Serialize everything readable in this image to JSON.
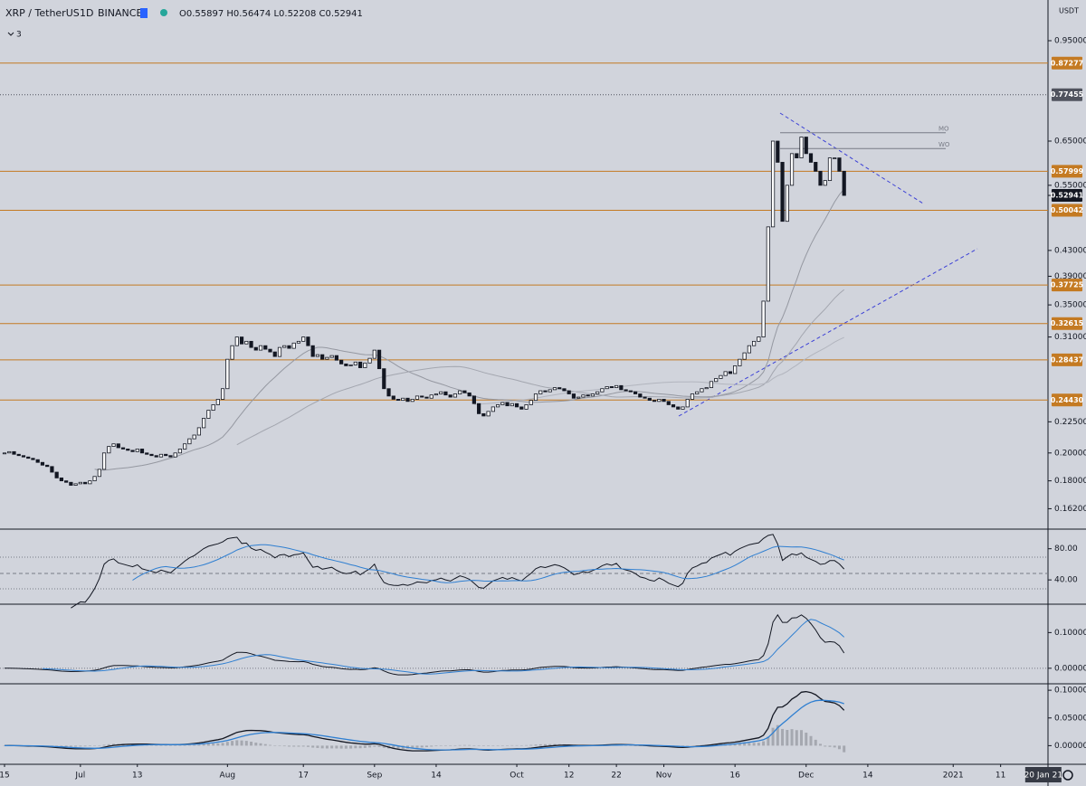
{
  "chart_data": {
    "type": "candlestick",
    "symbol": "XRP / TetherUS",
    "interval": "1D",
    "exchange": "BINANCE",
    "ohlc": "O0.55897 H0.56474 L0.52208 C0.52941",
    "indicator_count": "3",
    "currency": "USDT",
    "log_scale": true,
    "up_color": "#ffffff",
    "down_color": "#131722",
    "level_color": "#c47a22",
    "ylim": [
      0.151,
      1.108
    ],
    "yticks": [
      {
        "value": 0.95,
        "label": "0.95000"
      },
      {
        "value": 0.65,
        "label": "0.65000"
      },
      {
        "value": 0.55,
        "label": "0.55000"
      },
      {
        "value": 0.43,
        "label": "0.43000"
      },
      {
        "value": 0.39,
        "label": "0.39000"
      },
      {
        "value": 0.35,
        "label": "0.35000"
      },
      {
        "value": 0.31,
        "label": "0.31000"
      },
      {
        "value": 0.225,
        "label": "0.22500"
      },
      {
        "value": 0.2,
        "label": "0.20000"
      },
      {
        "value": 0.18,
        "label": "0.18000"
      },
      {
        "value": 0.162,
        "label": "0.16200"
      }
    ],
    "levels": [
      0.87277,
      0.57999,
      0.50042,
      0.37725,
      0.32615,
      0.28437,
      {
        "value": 0.2443,
        "label": "0.24430"
      }
    ],
    "high_marker": 0.77455,
    "last_price": 0.52941,
    "open_levels": [
      {
        "label": "MO",
        "value": 0.671
      },
      {
        "label": "WO",
        "value": 0.632
      }
    ],
    "xlim": [
      -1,
      227
    ],
    "xticks": [
      {
        "value": 0,
        "label": "15"
      },
      {
        "value": 16,
        "label": "Jul"
      },
      {
        "value": 28,
        "label": "13"
      },
      {
        "value": 47,
        "label": "Aug"
      },
      {
        "value": 63,
        "label": "17"
      },
      {
        "value": 78,
        "label": "Sep"
      },
      {
        "value": 91,
        "label": "14"
      },
      {
        "value": 108,
        "label": "Oct"
      },
      {
        "value": 119,
        "label": "12"
      },
      {
        "value": 129,
        "label": "22"
      },
      {
        "value": 139,
        "label": "Nov"
      },
      {
        "value": 154,
        "label": "16"
      },
      {
        "value": 169,
        "label": "Dec"
      },
      {
        "value": 182,
        "label": "14"
      },
      {
        "value": 200,
        "label": "2021"
      },
      {
        "value": 210,
        "label": "11"
      }
    ],
    "cursor_date": {
      "value": 219,
      "label": "20 Jan 21"
    },
    "close": [
      0.2,
      0.201,
      0.199,
      0.198,
      0.197,
      0.196,
      0.195,
      0.193,
      0.191,
      0.19,
      0.186,
      0.182,
      0.18,
      0.179,
      0.177,
      0.178,
      0.179,
      0.178,
      0.18,
      0.183,
      0.188,
      0.2,
      0.205,
      0.207,
      0.204,
      0.203,
      0.202,
      0.201,
      0.203,
      0.2,
      0.199,
      0.198,
      0.197,
      0.199,
      0.198,
      0.197,
      0.2,
      0.203,
      0.207,
      0.211,
      0.214,
      0.22,
      0.228,
      0.235,
      0.24,
      0.245,
      0.255,
      0.285,
      0.3,
      0.31,
      0.302,
      0.305,
      0.298,
      0.295,
      0.3,
      0.296,
      0.293,
      0.288,
      0.298,
      0.3,
      0.297,
      0.303,
      0.305,
      0.31,
      0.3,
      0.288,
      0.29,
      0.285,
      0.287,
      0.289,
      0.284,
      0.28,
      0.278,
      0.279,
      0.282,
      0.276,
      0.281,
      0.286,
      0.295,
      0.275,
      0.255,
      0.248,
      0.245,
      0.244,
      0.246,
      0.243,
      0.245,
      0.248,
      0.247,
      0.246,
      0.249,
      0.25,
      0.252,
      0.249,
      0.247,
      0.25,
      0.253,
      0.251,
      0.248,
      0.241,
      0.232,
      0.23,
      0.234,
      0.238,
      0.24,
      0.242,
      0.239,
      0.241,
      0.238,
      0.236,
      0.24,
      0.244,
      0.25,
      0.253,
      0.252,
      0.254,
      0.256,
      0.255,
      0.253,
      0.25,
      0.246,
      0.247,
      0.249,
      0.248,
      0.25,
      0.252,
      0.255,
      0.257,
      0.256,
      0.258,
      0.254,
      0.253,
      0.252,
      0.25,
      0.247,
      0.246,
      0.244,
      0.243,
      0.245,
      0.243,
      0.24,
      0.238,
      0.236,
      0.238,
      0.245,
      0.25,
      0.252,
      0.255,
      0.256,
      0.262,
      0.265,
      0.268,
      0.272,
      0.27,
      0.278,
      0.285,
      0.292,
      0.3,
      0.305,
      0.31,
      0.355,
      0.47,
      0.65,
      0.6,
      0.48,
      0.55,
      0.62,
      0.61,
      0.66,
      0.62,
      0.6,
      0.58,
      0.55,
      0.56,
      0.61,
      0.61,
      0.58,
      0.52941
    ],
    "indicator_panes": [
      {
        "ylim": [
          10,
          104
        ],
        "yticks": [
          {
            "value": 80,
            "label": "80.00"
          },
          {
            "value": 40,
            "label": "40.00"
          }
        ]
      },
      {
        "ylim": [
          -0.041,
          0.177
        ],
        "yticks": [
          {
            "value": 0.1,
            "label": "0.10000"
          },
          {
            "value": 0,
            "label": "0.00000"
          }
        ]
      },
      {
        "ylim": [
          -0.032,
          0.11
        ],
        "yticks": [
          {
            "value": 0.1,
            "label": "0.10000"
          },
          {
            "value": 0.05,
            "label": "0.05000"
          },
          {
            "value": 0,
            "label": "0.00000"
          }
        ]
      }
    ]
  }
}
